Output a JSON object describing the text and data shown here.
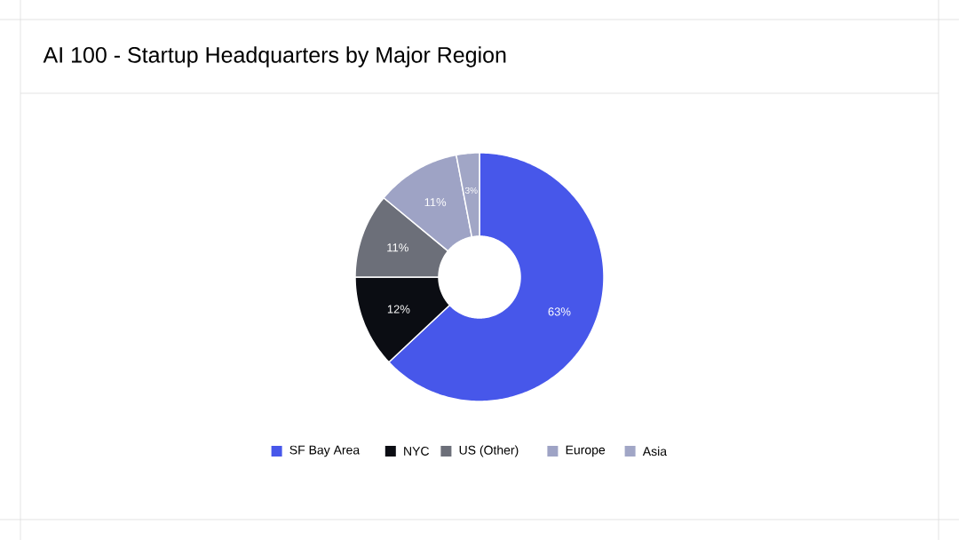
{
  "chart_data": {
    "type": "donut",
    "title": "AI 100 - Startup Headquarters by Major Region",
    "categories": [
      "SF Bay Area",
      "NYC",
      "US (Other)",
      "Europe",
      "Asia"
    ],
    "values": [
      63,
      12,
      11,
      11,
      3
    ],
    "colors": [
      "#4757ea",
      "#0b0d13",
      "#6c6f79",
      "#9ea3c5",
      "#a1a6c6"
    ],
    "value_labels": [
      "63%",
      "12%",
      "11%",
      "11%",
      "3%"
    ],
    "legend": "bottom"
  }
}
